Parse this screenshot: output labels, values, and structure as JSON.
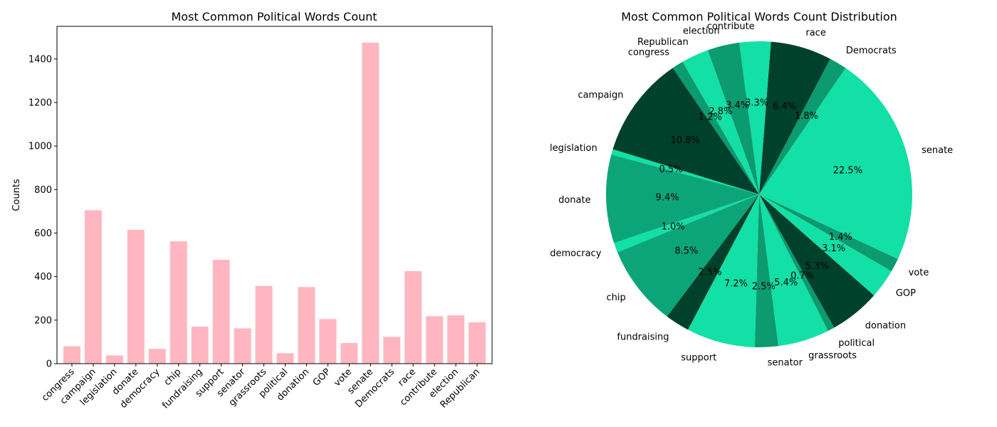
{
  "chart_data": [
    {
      "type": "bar",
      "title": "Most Common Political Words Count",
      "xlabel": "",
      "ylabel": "Counts",
      "ylim": [
        0,
        1550
      ],
      "yticks": [
        0,
        200,
        400,
        600,
        800,
        1000,
        1200,
        1400
      ],
      "categories": [
        "congress",
        "campaign",
        "legislation",
        "donate",
        "democracy",
        "chip",
        "fundraising",
        "support",
        "senator",
        "grassroots",
        "political",
        "donation",
        "GOP",
        "vote",
        "senate",
        "Democrats",
        "race",
        "contribute",
        "election",
        "Republican"
      ],
      "values": [
        80,
        705,
        38,
        615,
        68,
        562,
        170,
        477,
        162,
        357,
        48,
        352,
        205,
        95,
        1475,
        123,
        425,
        218,
        222,
        190
      ],
      "bar_color": "#ffb6c1",
      "grid": false
    },
    {
      "type": "pie",
      "title": "Most Common Political Words Count Distribution",
      "labels": [
        "congress",
        "campaign",
        "legislation",
        "donate",
        "democracy",
        "chip",
        "fundraising",
        "support",
        "senator",
        "grassroots",
        "political",
        "donation",
        "GOP",
        "vote",
        "senate",
        "Democrats",
        "race",
        "contribute",
        "election",
        "Republican"
      ],
      "values": [
        80,
        705,
        38,
        615,
        68,
        562,
        170,
        477,
        162,
        357,
        48,
        352,
        205,
        95,
        1475,
        123,
        425,
        218,
        222,
        190
      ],
      "percent_labels": [
        "1.2%",
        "10.8%",
        "0.5%",
        "9.4%",
        "1.0%",
        "8.5%",
        "2.5%",
        "7.2%",
        "2.5%",
        "5.4%",
        "0.7%",
        "5.3%",
        "3.1%",
        "1.4%",
        "22.5%",
        "1.8%",
        "6.4%",
        "3.3%",
        "3.4%",
        "2.8%"
      ],
      "colors": [
        "#0c9a6f",
        "#00412c",
        "#12e0a6",
        "#0ca57a",
        "#12e0a6",
        "#0ca57a",
        "#00412c",
        "#12e0a6",
        "#0c9a6f",
        "#12e0a6",
        "#0c9a6f",
        "#00412c",
        "#12e0a6",
        "#0c9a6f",
        "#12e0a6",
        "#0c9a6f",
        "#00412c",
        "#12e0a6",
        "#0c9a6f",
        "#12e0a6"
      ],
      "start_angle_deg": 120,
      "direction": "counterclockwise"
    }
  ]
}
